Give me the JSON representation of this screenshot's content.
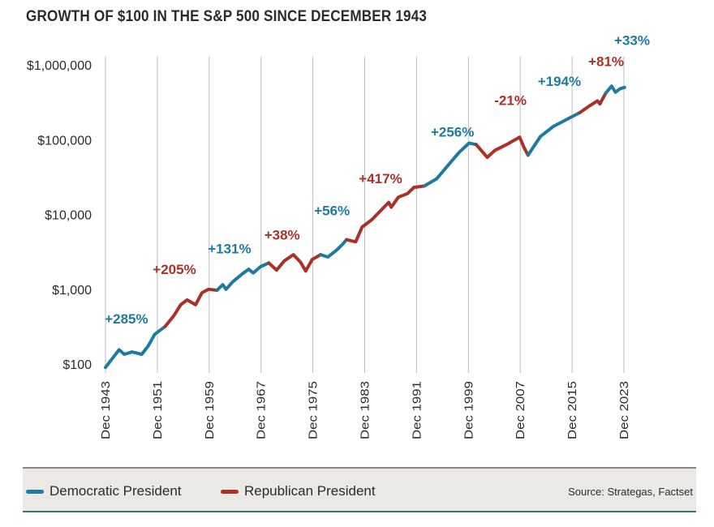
{
  "title": "GROWTH OF $100 IN THE S&P 500 SINCE DECEMBER 1943",
  "colors": {
    "democratic": "#1f7aa0",
    "republican": "#a93226",
    "text": "#2b2b2b",
    "grid": "#bdbdbd"
  },
  "legend": {
    "democratic": "Democratic President",
    "republican": "Republican President"
  },
  "source": "Source: Strategas, Factset",
  "chart_data": {
    "type": "line",
    "title": "GROWTH OF $100 IN THE S&P 500 SINCE DECEMBER 1943",
    "yscale": "log",
    "ylim": [
      100,
      1000000
    ],
    "xlim": [
      1943.9,
      2024.5
    ],
    "y_ticks": [
      {
        "value": 100,
        "label": "$100"
      },
      {
        "value": 1000,
        "label": "$1,000"
      },
      {
        "value": 10000,
        "label": "$10,000"
      },
      {
        "value": 100000,
        "label": "$100,000"
      },
      {
        "value": 1000000,
        "label": "$1,000,000"
      }
    ],
    "x_ticks": [
      {
        "value": 1943.9,
        "label": "Dec 1943"
      },
      {
        "value": 1951.9,
        "label": "Dec 1951"
      },
      {
        "value": 1959.9,
        "label": "Dec 1959"
      },
      {
        "value": 1967.9,
        "label": "Dec 1967"
      },
      {
        "value": 1975.9,
        "label": "Dec 1975"
      },
      {
        "value": 1983.9,
        "label": "Dec 1983"
      },
      {
        "value": 1991.9,
        "label": "Dec 1991"
      },
      {
        "value": 1999.9,
        "label": "Dec 1999"
      },
      {
        "value": 2007.9,
        "label": "Dec 2007"
      },
      {
        "value": 2015.9,
        "label": "Dec 2015"
      },
      {
        "value": 2023.9,
        "label": "Dec 2023"
      }
    ],
    "segments": [
      {
        "party": "democratic",
        "label": "+285%",
        "label_x": 1943.8,
        "label_y": 350,
        "points": [
          [
            1943.9,
            90
          ],
          [
            1945,
            120
          ],
          [
            1946,
            155
          ],
          [
            1946.8,
            135
          ],
          [
            1948,
            145
          ],
          [
            1949.5,
            135
          ],
          [
            1950.5,
            175
          ],
          [
            1951.5,
            250
          ],
          [
            1953.1,
            318
          ]
        ]
      },
      {
        "party": "republican",
        "label": "+205%",
        "label_x": 1951.2,
        "label_y": 1600,
        "points": [
          [
            1953.1,
            318
          ],
          [
            1954.5,
            450
          ],
          [
            1955.5,
            620
          ],
          [
            1956.5,
            720
          ],
          [
            1957.8,
            620
          ],
          [
            1958.8,
            900
          ],
          [
            1959.8,
            1000
          ],
          [
            1961.1,
            970
          ]
        ]
      },
      {
        "party": "democratic",
        "label": "+131%",
        "label_x": 1959.7,
        "label_y": 3000,
        "points": [
          [
            1961.1,
            970
          ],
          [
            1962,
            1150
          ],
          [
            1962.5,
            1000
          ],
          [
            1963.5,
            1250
          ],
          [
            1965,
            1600
          ],
          [
            1966,
            1850
          ],
          [
            1966.7,
            1650
          ],
          [
            1967.8,
            2000
          ],
          [
            1969.1,
            2250
          ]
        ]
      },
      {
        "party": "republican",
        "label": "+38%",
        "label_x": 1968.4,
        "label_y": 4600,
        "points": [
          [
            1969.1,
            2250
          ],
          [
            1970.3,
            1800
          ],
          [
            1971.5,
            2400
          ],
          [
            1972.9,
            2900
          ],
          [
            1974.0,
            2300
          ],
          [
            1974.8,
            1750
          ],
          [
            1975.8,
            2500
          ],
          [
            1977.1,
            2900
          ]
        ]
      },
      {
        "party": "democratic",
        "label": "+56%",
        "label_x": 1976.1,
        "label_y": 9800,
        "points": [
          [
            1977.1,
            2900
          ],
          [
            1978.2,
            2700
          ],
          [
            1979.5,
            3300
          ],
          [
            1980.5,
            4000
          ],
          [
            1981.1,
            4600
          ]
        ]
      },
      {
        "party": "republican",
        "label": "+417%",
        "label_x": 1983.0,
        "label_y": 26000,
        "points": [
          [
            1981.1,
            4600
          ],
          [
            1982.5,
            4300
          ],
          [
            1983.5,
            6800
          ],
          [
            1985,
            8500
          ],
          [
            1987.6,
            14500
          ],
          [
            1988,
            12500
          ],
          [
            1989.1,
            17000
          ],
          [
            1990.5,
            19000
          ],
          [
            1991.5,
            23000
          ],
          [
            1993.1,
            24000
          ]
        ]
      },
      {
        "party": "democratic",
        "label": "+256%",
        "label_x": 1994.1,
        "label_y": 110000,
        "points": [
          [
            1993.1,
            24000
          ],
          [
            1995,
            30000
          ],
          [
            1997,
            48000
          ],
          [
            1998.5,
            68000
          ],
          [
            2000,
            90000
          ],
          [
            2001.1,
            86000
          ]
        ]
      },
      {
        "party": "republican",
        "label": "-21%",
        "label_x": 2003.9,
        "label_y": 290000,
        "points": [
          [
            2001.1,
            86000
          ],
          [
            2002.8,
            58000
          ],
          [
            2004,
            72000
          ],
          [
            2006,
            88000
          ],
          [
            2007.8,
            108000
          ],
          [
            2008.5,
            78000
          ],
          [
            2009.1,
            62000
          ]
        ]
      },
      {
        "party": "democratic",
        "label": "+194%",
        "label_x": 2010.6,
        "label_y": 520000,
        "points": [
          [
            2009.1,
            62000
          ],
          [
            2011,
            110000
          ],
          [
            2013,
            150000
          ],
          [
            2015.5,
            195000
          ],
          [
            2017.1,
            230000
          ]
        ]
      },
      {
        "party": "republican",
        "label": "+81%",
        "label_x": 2018.4,
        "label_y": 960000,
        "points": [
          [
            2017.1,
            230000
          ],
          [
            2018.5,
            280000
          ],
          [
            2019.8,
            330000
          ],
          [
            2020.2,
            300000
          ],
          [
            2021.1,
            420000
          ]
        ]
      },
      {
        "party": "democratic",
        "label": "+33%",
        "label_x": 2022.4,
        "label_y": 1850000,
        "points": [
          [
            2021.1,
            420000
          ],
          [
            2022,
            520000
          ],
          [
            2022.6,
            430000
          ],
          [
            2023.3,
            480000
          ],
          [
            2024.0,
            500000
          ]
        ]
      }
    ]
  }
}
